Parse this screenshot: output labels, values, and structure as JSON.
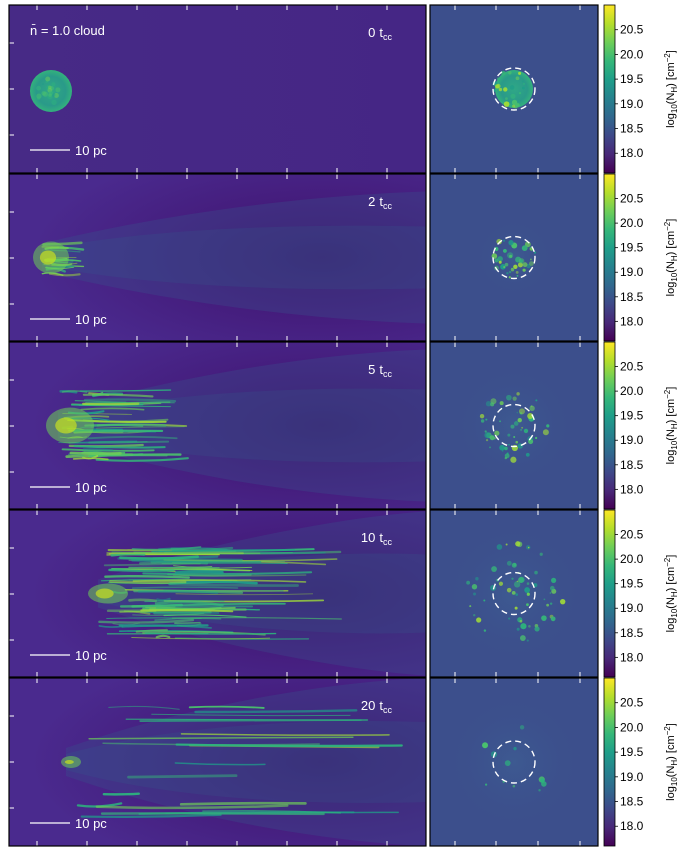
{
  "figure": {
    "cloud_label": "n̄ = 1.0 cloud",
    "scale_bar_label": "10 pc",
    "colorbar": {
      "label": "log10(NH) [cm−2]",
      "label_main": "log",
      "label_sub10": "10",
      "label_nh": "(N",
      "label_nh_sub": "H",
      "label_unit": ") [cm",
      "label_unit_sup": "−2",
      "label_close": "]",
      "ticks": [
        "20.5",
        "20.0",
        "19.5",
        "19.0",
        "18.5",
        "18.0"
      ],
      "tick_values": [
        20.5,
        20.0,
        19.5,
        19.0,
        18.5,
        18.0
      ],
      "range": [
        17.6,
        21.0
      ],
      "colormap": "viridis"
    },
    "rows": [
      {
        "time_number": "0",
        "time_unit": "t",
        "time_sub": "cc",
        "stage": 0
      },
      {
        "time_number": "2",
        "time_unit": "t",
        "time_sub": "cc",
        "stage": 1
      },
      {
        "time_number": "5",
        "time_unit": "t",
        "time_sub": "cc",
        "stage": 2
      },
      {
        "time_number": "10",
        "time_unit": "t",
        "time_sub": "cc",
        "stage": 3
      },
      {
        "time_number": "20",
        "time_unit": "t",
        "time_sub": "cc",
        "stage": 4
      }
    ],
    "colors": {
      "background_side": "#45228a",
      "background_face": "#3c4f8c",
      "cloud_core": "#35b779",
      "cloud_bright": "#c8e020",
      "annotation": "#ffffff",
      "frame": "#000000"
    }
  }
}
